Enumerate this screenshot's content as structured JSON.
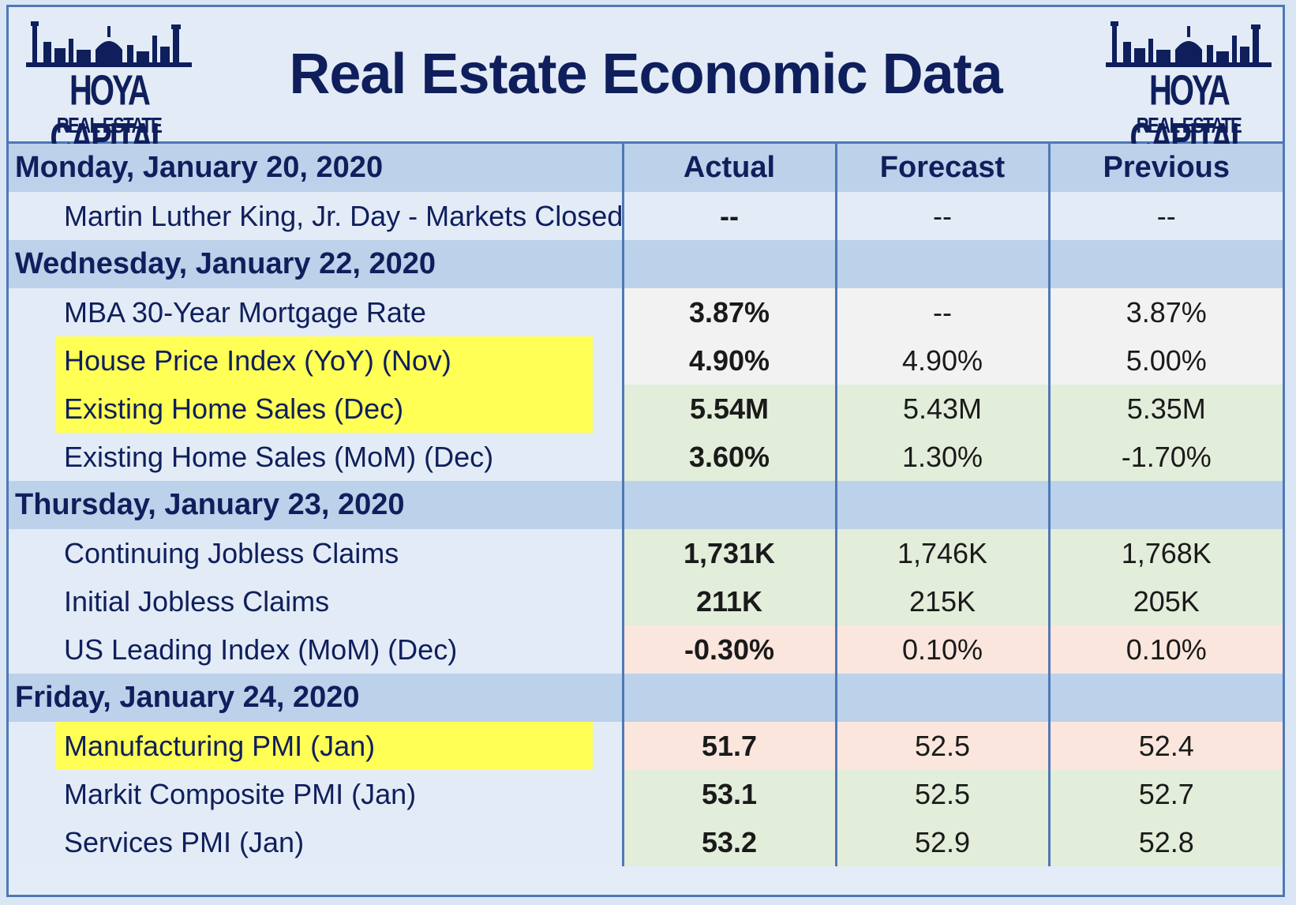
{
  "title": "Real Estate Economic Data",
  "logo": {
    "brand": "HOYA CAPITAL",
    "sub": "REAL ESTATE"
  },
  "colors": {
    "navy": "#0f1f5c",
    "border": "#4f78b8",
    "highlight": "#ffff55",
    "positive": "#3aa52d",
    "negative": "#e02b2b"
  },
  "columns": {
    "actual": "Actual",
    "forecast": "Forecast",
    "previous": "Previous"
  },
  "days": [
    {
      "date": "Monday, January 20, 2020",
      "rows": [
        {
          "indicator": "Martin Luther King, Jr. Day - Markets Closed",
          "actual": "--",
          "forecast": "--",
          "previous": "--",
          "highlight": false,
          "row_tint": "neutral",
          "actual_color": "dark",
          "previous_color": "dark"
        }
      ]
    },
    {
      "date": "Wednesday, January 22, 2020",
      "rows": [
        {
          "indicator": "MBA 30-Year Mortgage Rate",
          "actual": "3.87%",
          "forecast": "--",
          "previous": "3.87%",
          "highlight": false,
          "row_tint": "grey",
          "actual_color": "black",
          "previous_color": "dark"
        },
        {
          "indicator": "House Price Index (YoY) (Nov)",
          "actual": "4.90%",
          "forecast": "4.90%",
          "previous": "5.00%",
          "highlight": true,
          "row_tint": "grey",
          "actual_color": "black",
          "previous_color": "dark"
        },
        {
          "indicator": "Existing Home Sales (Dec)",
          "actual": "5.54M",
          "forecast": "5.43M",
          "previous": "5.35M",
          "highlight": true,
          "row_tint": "green",
          "actual_color": "green",
          "previous_color": "dark"
        },
        {
          "indicator": "Existing Home Sales (MoM) (Dec)",
          "actual": "3.60%",
          "forecast": "1.30%",
          "previous": "-1.70%",
          "highlight": false,
          "row_tint": "green",
          "actual_color": "green",
          "previous_color": "dark"
        }
      ]
    },
    {
      "date": "Thursday, January 23, 2020",
      "rows": [
        {
          "indicator": "Continuing Jobless Claims",
          "actual": "1,731K",
          "forecast": "1,746K",
          "previous": "1,768K",
          "highlight": false,
          "row_tint": "green",
          "actual_color": "green",
          "previous_color": "red"
        },
        {
          "indicator": "Initial Jobless Claims",
          "actual": "211K",
          "forecast": "215K",
          "previous": "205K",
          "highlight": false,
          "row_tint": "green",
          "actual_color": "green",
          "previous_color": "red"
        },
        {
          "indicator": "US Leading Index (MoM) (Dec)",
          "actual": "-0.30%",
          "forecast": "0.10%",
          "previous": "0.10%",
          "highlight": false,
          "row_tint": "red",
          "actual_color": "red",
          "previous_color": "green"
        }
      ]
    },
    {
      "date": "Friday, January 24, 2020",
      "rows": [
        {
          "indicator": "Manufacturing PMI (Jan)",
          "actual": "51.7",
          "forecast": "52.5",
          "previous": "52.4",
          "highlight": true,
          "row_tint": "red",
          "actual_color": "red",
          "previous_color": "dark"
        },
        {
          "indicator": "Markit Composite PMI (Jan)",
          "actual": "53.1",
          "forecast": "52.5",
          "previous": "52.7",
          "highlight": false,
          "row_tint": "green",
          "actual_color": "green",
          "previous_color": "dark"
        },
        {
          "indicator": "Services PMI (Jan)",
          "actual": "53.2",
          "forecast": "52.9",
          "previous": "52.8",
          "highlight": false,
          "row_tint": "green",
          "actual_color": "green",
          "previous_color": "dark"
        }
      ]
    }
  ]
}
